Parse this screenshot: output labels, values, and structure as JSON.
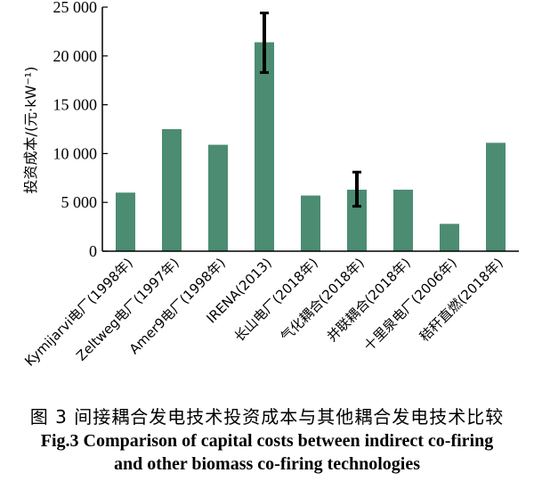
{
  "chart_data": {
    "type": "bar",
    "ylabel": "投资成本/(元·kW⁻¹)",
    "ylim": [
      0,
      25000
    ],
    "yticks": [
      0,
      5000,
      10000,
      15000,
      20000,
      25000
    ],
    "ytick_labels": [
      "0",
      "5 000",
      "10 000",
      "15 000",
      "20 000",
      "25 000"
    ],
    "categories": [
      "Kymijarvi电厂(1998年)",
      "Zeltweg电厂(1997年)",
      "Amer9电厂(1998年)",
      "IRENA(2013)",
      "长山电厂(2018年)",
      "气化耦合(2018年)",
      "并联耦合(2018年)",
      "十里泉电厂(2006年)",
      "秸秆直燃(2018年)"
    ],
    "values": [
      6000,
      12500,
      10900,
      21400,
      5700,
      6300,
      6300,
      2800,
      11100
    ],
    "error_bars": [
      null,
      null,
      null,
      [
        18300,
        24400
      ],
      null,
      [
        4600,
        8100
      ],
      null,
      null,
      null
    ],
    "bar_color": "#4b8c72",
    "grid": false
  },
  "caption": {
    "cn": "图 3  间接耦合发电技术投资成本与其他耦合发电技术比较",
    "en_line1": "Fig.3 Comparison of capital costs between indirect co-firing",
    "en_line2": "and other biomass co-firing technologies"
  }
}
